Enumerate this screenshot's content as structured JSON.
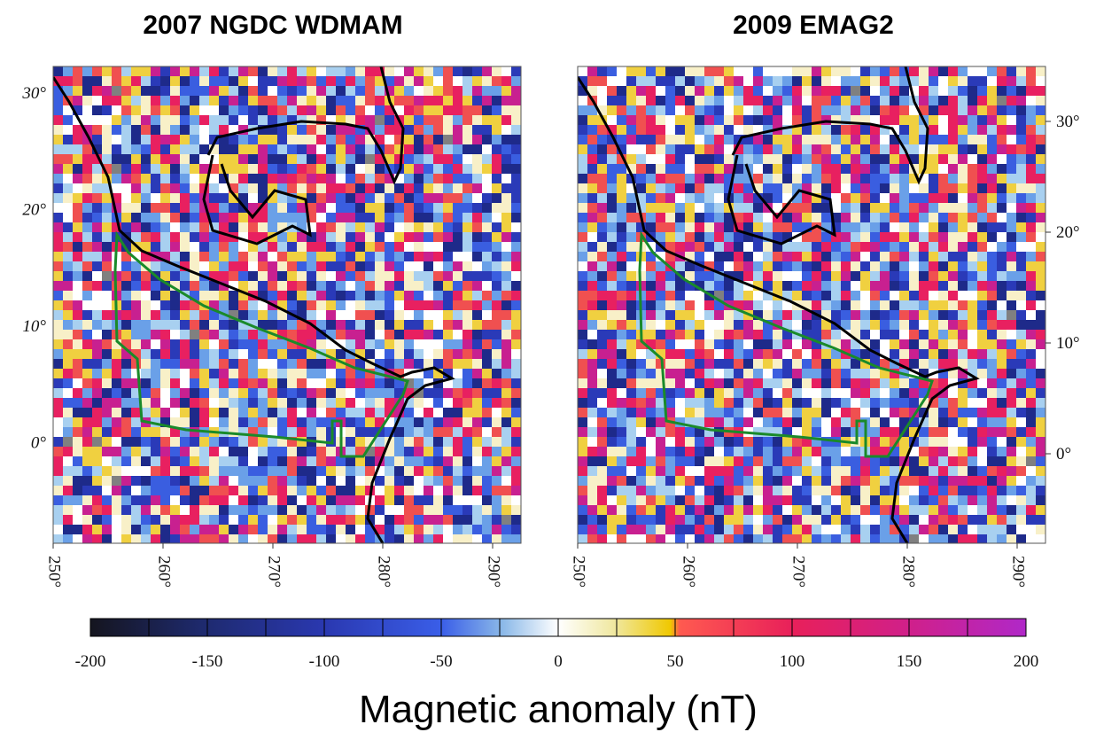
{
  "panels": [
    {
      "title": "2007 NGDC WDMAM",
      "lon_labels": [
        "250°",
        "260°",
        "270°",
        "280°",
        "290°"
      ],
      "lat_labels": [
        "30°",
        "20°",
        "10°",
        "0°"
      ]
    },
    {
      "title": "2009 EMAG2",
      "lon_labels": [
        "250°",
        "260°",
        "270°",
        "280°",
        "290°"
      ],
      "lat_labels": [
        "30°",
        "20°",
        "10°",
        "0°"
      ]
    }
  ],
  "colorbar": {
    "lim": [
      -200,
      200
    ],
    "ticks": [
      -200,
      -150,
      -100,
      -50,
      0,
      50,
      100,
      150,
      200
    ],
    "label": "Magnetic anomaly (nT)"
  }
}
